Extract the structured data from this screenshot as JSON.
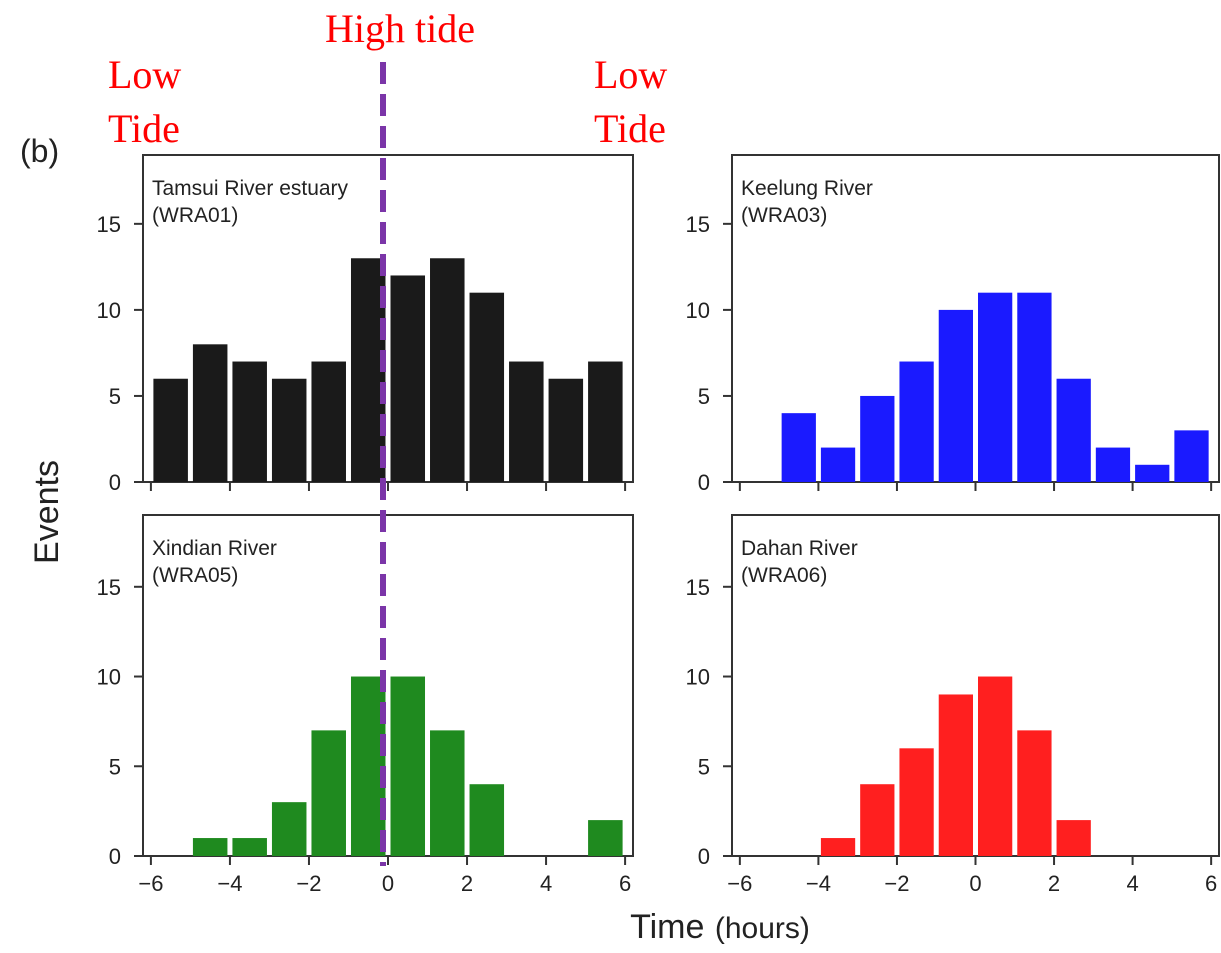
{
  "panel_label": "(b)",
  "tide_annotations": {
    "high_tide": "High tide",
    "low_tide_left": [
      "Low",
      "Tide"
    ],
    "low_tide_right": [
      "Low",
      "Tide"
    ],
    "line_color": "#7b35a8"
  },
  "chart_data": [
    {
      "type": "bar",
      "title": [
        "Tamsui River estuary",
        "(WRA01)"
      ],
      "color": "#1a1a1a",
      "x": [
        -5.5,
        -4.5,
        -3.5,
        -2.5,
        -1.5,
        -0.5,
        0.5,
        1.5,
        2.5,
        3.5,
        4.5,
        5.5
      ],
      "values": [
        6,
        8,
        7,
        6,
        7,
        13,
        12,
        13,
        11,
        7,
        6,
        7
      ],
      "xlim": [
        -6.2,
        6.2
      ],
      "ylim": [
        0,
        19
      ],
      "xticks": [
        -6,
        -4,
        -2,
        0,
        2,
        4,
        6
      ],
      "xticklabels": [],
      "yticks": [
        0,
        5,
        10,
        15
      ],
      "yticklabels": [
        "0",
        "5",
        "10",
        "15"
      ]
    },
    {
      "type": "bar",
      "title": [
        "Keelung River",
        "(WRA03)"
      ],
      "color": "#1a1aff",
      "x": [
        -5.5,
        -4.5,
        -3.5,
        -2.5,
        -1.5,
        -0.5,
        0.5,
        1.5,
        2.5,
        3.5,
        4.5,
        5.5
      ],
      "values": [
        0,
        4,
        2,
        5,
        7,
        10,
        11,
        11,
        6,
        2,
        1,
        3
      ],
      "xlim": [
        -6.2,
        6.2
      ],
      "ylim": [
        0,
        19
      ],
      "xticks": [
        -6,
        -4,
        -2,
        0,
        2,
        4,
        6
      ],
      "xticklabels": [],
      "yticks": [
        0,
        5,
        10,
        15
      ],
      "yticklabels": [
        "0",
        "5",
        "10",
        "15"
      ]
    },
    {
      "type": "bar",
      "title": [
        "Xindian River",
        "(WRA05)"
      ],
      "color": "#1f8a1f",
      "x": [
        -5.5,
        -4.5,
        -3.5,
        -2.5,
        -1.5,
        -0.5,
        0.5,
        1.5,
        2.5,
        3.5,
        4.5,
        5.5
      ],
      "values": [
        0,
        1,
        1,
        3,
        7,
        10,
        10,
        7,
        4,
        0,
        0,
        2
      ],
      "xlim": [
        -6.2,
        6.2
      ],
      "ylim": [
        0,
        19
      ],
      "xticks": [
        -6,
        -4,
        -2,
        0,
        2,
        4,
        6
      ],
      "xticklabels": [
        "−6",
        "−4",
        "−2",
        "0",
        "2",
        "4",
        "6"
      ],
      "yticks": [
        0,
        5,
        10,
        15
      ],
      "yticklabels": [
        "0",
        "5",
        "10",
        "15"
      ]
    },
    {
      "type": "bar",
      "title": [
        "Dahan River",
        "(WRA06)"
      ],
      "color": "#ff1f1f",
      "x": [
        -5.5,
        -4.5,
        -3.5,
        -2.5,
        -1.5,
        -0.5,
        0.5,
        1.5,
        2.5,
        3.5,
        4.5,
        5.5
      ],
      "values": [
        0,
        0,
        1,
        4,
        6,
        9,
        10,
        7,
        2,
        0,
        0,
        0
      ],
      "xlim": [
        -6.2,
        6.2
      ],
      "ylim": [
        0,
        19
      ],
      "xticks": [
        -6,
        -4,
        -2,
        0,
        2,
        4,
        6
      ],
      "xticklabels": [
        "−6",
        "−4",
        "−2",
        "0",
        "2",
        "4",
        "6"
      ],
      "yticks": [
        0,
        5,
        10,
        15
      ],
      "yticklabels": [
        "0",
        "5",
        "10",
        "15"
      ]
    }
  ],
  "axes": {
    "ylabel": "Events",
    "xlabel_main": "Time",
    "xlabel_unit": "(hours)"
  }
}
